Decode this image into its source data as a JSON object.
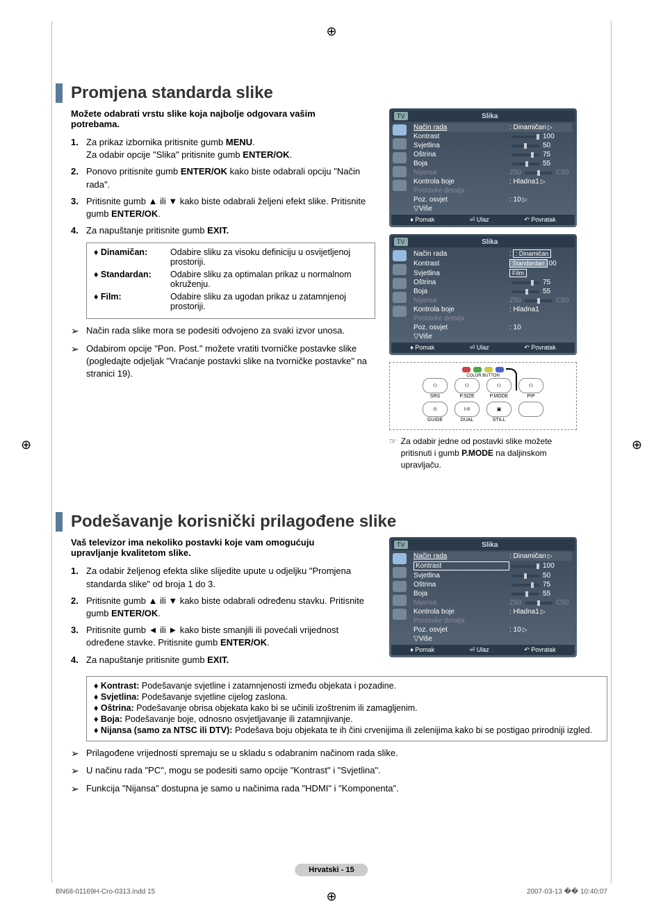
{
  "marks": {
    "reg": "⊕"
  },
  "section1": {
    "title": "Promjena standarda slike",
    "intro": "Možete odabrati vrstu slike koja najbolje odgovara vašim potrebama.",
    "steps": [
      {
        "n": "1.",
        "html": "Za prikaz izbornika pritisnite gumb <b>MENU</b>.<br>Za odabir opcije \"Slika\" pritisnite gumb <b>ENTER/OK</b>."
      },
      {
        "n": "2.",
        "html": "Ponovo pritisnite gumb <b>ENTER/OK</b> kako biste odabrali opciju \"Način rada\"."
      },
      {
        "n": "3.",
        "html": "Pritisnite gumb ▲ ili ▼ kako biste odabrali željeni efekt slike. Pritisnite gumb <b>ENTER/OK</b>."
      },
      {
        "n": "4.",
        "html": "Za napuštanje pritisnite gumb <b>EXIT.</b>"
      }
    ],
    "modes": [
      {
        "label": "♦ Dinamičan:",
        "desc": "Odabire sliku za visoku definiciju u osvijetljenoj prostoriji."
      },
      {
        "label": "♦ Standardan:",
        "desc": "Odabire sliku za optimalan prikaz u normalnom okruženju."
      },
      {
        "label": "♦ Film:",
        "desc": "Odabire sliku za ugodan prikaz u zatamnjenoj prostoriji."
      }
    ],
    "notes": [
      "Način rada slike mora se podesiti odvojeno za svaki izvor unosa.",
      "Odabirom opcije \"Pon. Post.\" možete vratiti tvorničke postavke slike (pogledajte odjeljak \"Vraćanje postavki slike na tvorničke postavke\" na stranici 19)."
    ],
    "remote_note": "Za odabir jedne od postavki slike možete pritisnuti i gumb <b>P.MODE</b> na daljinskom upravljaču."
  },
  "section2": {
    "title": "Podešavanje korisnički prilagođene slike",
    "intro": "Vaš televizor ima nekoliko postavki koje vam omogućuju upravljanje kvalitetom slike.",
    "steps": [
      {
        "n": "1.",
        "html": "Za odabir željenog efekta slike slijedite upute u odjeljku \"Promjena standarda slike\" od broja 1 do 3."
      },
      {
        "n": "2.",
        "html": "Pritisnite gumb ▲ ili ▼ kako biste odabrali određenu stavku. Pritisnite gumb <b>ENTER/OK</b>."
      },
      {
        "n": "3.",
        "html": "Pritisnite gumb ◄ ili ► kako biste smanjili ili povećali vrijednost određene stavke. Pritisnite gumb <b>ENTER/OK</b>."
      },
      {
        "n": "4.",
        "html": "Za napuštanje pritisnite gumb <b>EXIT.</b>"
      }
    ],
    "bullets": [
      "<b>♦ Kontrast:</b> Podešavanje svjetline i zatamnjenosti između objekata i pozadine.",
      "<b>♦ Svjetlina:</b> Podešavanje svjetline cijelog zaslona.",
      "<b>♦ Oštrina:</b> Podešavanje obrisa objekata kako bi se učinili izoštrenim ili zamagljenim.",
      "<b>♦ Boja:</b> Podešavanje boje, odnosno osvjetljavanje ili zatamnjivanje.",
      "<b>♦ Nijansa (samo za NTSC ili DTV):</b> Podešava boju objekata te ih čini crvenijima ili zelenijima kako bi se postigao prirodniji izgled."
    ],
    "notes": [
      "Prilagođene vrijednosti spremaju se u skladu s odabranim načinom rada slike.",
      "U načinu rada \"PC\", mogu se podesiti samo opcije \"Kontrast\" i \"Svjetlina\".",
      "Funkcija \"Nijansa\" dostupna je samo u načinima rada \"HDMI\" i \"Komponenta\"."
    ]
  },
  "osd": {
    "tv": "TV",
    "title": "Slika",
    "rows": {
      "nacin": "Način rada",
      "kontrast": "Kontrast",
      "svjetlina": "Svjetlina",
      "ostrina": "Oštrina",
      "boja": "Boja",
      "nijansa": "Nijansa",
      "kontrola": "Kontrola boje",
      "postavke": "Postavke detalja",
      "poz": "Poz. osvjet",
      "vise": "▽Više"
    },
    "vals": {
      "dinamican": ": Dinamičan",
      "hladna1": ": Hladna1",
      "ten": ": 10",
      "z50": "Z50",
      "c50": "C50",
      "v100": "100",
      "v75": "75",
      "v55": "55",
      "v50": "50",
      "standardan": "Standardan",
      "film": "Film",
      "v00": "00"
    },
    "footer": {
      "pomak": "Pomak",
      "ulaz": "Ulaz",
      "povratak": "Povratak"
    }
  },
  "remote": {
    "color_button": "COLOR BUTTON",
    "srs": "SRS",
    "psize": "P.SIZE",
    "pmode": "P.MODE",
    "pip": "PIP",
    "guide": "GUIDE",
    "dual": "DUAL",
    "still": "STILL"
  },
  "footer": {
    "page": "Hrvatski - 15",
    "file": "BN68-01169H-Cro-0313.indd   15",
    "date": "2007-03-13   �� 10:40:07"
  },
  "colors": {
    "title_bar": "#5a7a9a",
    "osd_bg_top": "#3a4a5a",
    "osd_bg_bot": "#556575",
    "remote_red": "#c44",
    "remote_green": "#4a4",
    "remote_yellow": "#cc4",
    "remote_blue": "#46c"
  }
}
